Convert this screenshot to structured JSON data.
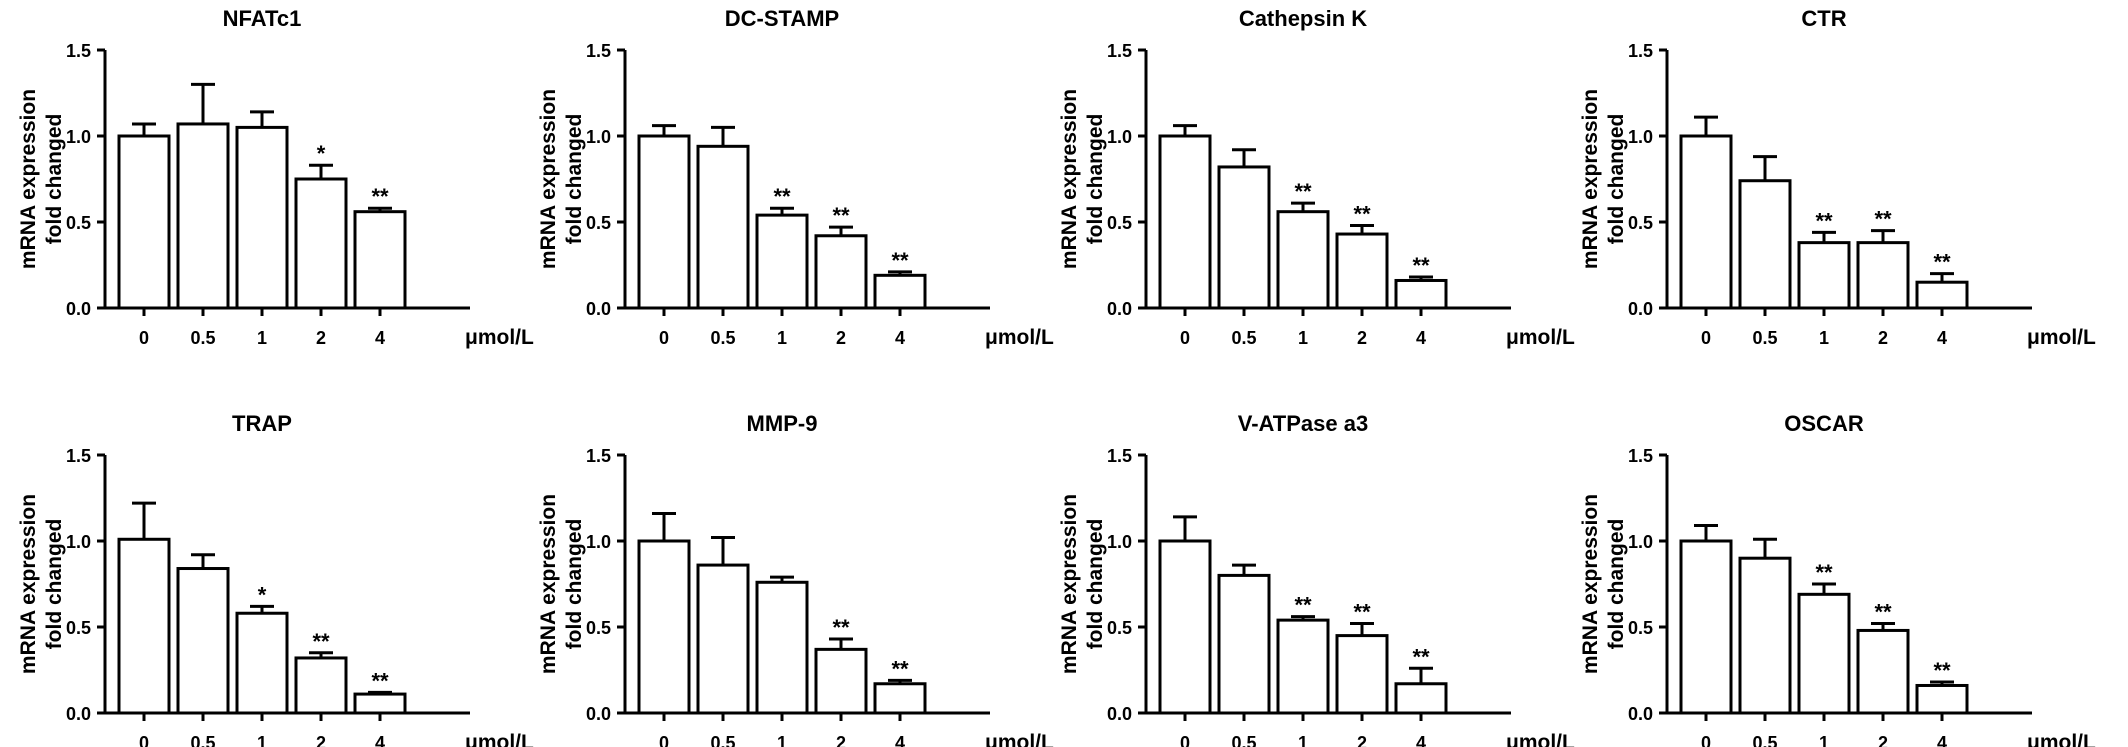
{
  "chart_data": [
    {
      "type": "bar",
      "title": "NFATc1",
      "ylabel": [
        "mRNA expression",
        "fold changed"
      ],
      "xunit": "μmol/L",
      "categories": [
        "0",
        "0.5",
        "1",
        "2",
        "4"
      ],
      "values": [
        1.0,
        1.07,
        1.05,
        0.75,
        0.56
      ],
      "errors": [
        0.07,
        0.23,
        0.09,
        0.08,
        0.02
      ],
      "significance": [
        "",
        "",
        "",
        "*",
        "**"
      ],
      "ylim": [
        0,
        1.5
      ],
      "yticks": [
        "0.0",
        "0.5",
        "1.0",
        "1.5"
      ]
    },
    {
      "type": "bar",
      "title": "DC-STAMP",
      "ylabel": [
        "mRNA expression",
        "fold changed"
      ],
      "xunit": "μmol/L",
      "categories": [
        "0",
        "0.5",
        "1",
        "2",
        "4"
      ],
      "values": [
        1.0,
        0.94,
        0.54,
        0.42,
        0.19
      ],
      "errors": [
        0.06,
        0.11,
        0.04,
        0.05,
        0.02
      ],
      "significance": [
        "",
        "",
        "**",
        "**",
        "**"
      ],
      "ylim": [
        0,
        1.5
      ],
      "yticks": [
        "0.0",
        "0.5",
        "1.0",
        "1.5"
      ]
    },
    {
      "type": "bar",
      "title": "Cathepsin K",
      "ylabel": [
        "mRNA expression",
        "fold changed"
      ],
      "xunit": "μmol/L",
      "categories": [
        "0",
        "0.5",
        "1",
        "2",
        "4"
      ],
      "values": [
        1.0,
        0.82,
        0.56,
        0.43,
        0.16
      ],
      "errors": [
        0.06,
        0.1,
        0.05,
        0.05,
        0.02
      ],
      "significance": [
        "",
        "",
        "**",
        "**",
        "**"
      ],
      "ylim": [
        0,
        1.5
      ],
      "yticks": [
        "0.0",
        "0.5",
        "1.0",
        "1.5"
      ]
    },
    {
      "type": "bar",
      "title": "CTR",
      "ylabel": [
        "mRNA expression",
        "fold changed"
      ],
      "xunit": "μmol/L",
      "categories": [
        "0",
        "0.5",
        "1",
        "2",
        "4"
      ],
      "values": [
        1.0,
        0.74,
        0.38,
        0.38,
        0.15
      ],
      "errors": [
        0.11,
        0.14,
        0.06,
        0.07,
        0.05
      ],
      "significance": [
        "",
        "",
        "**",
        "**",
        "**"
      ],
      "ylim": [
        0,
        1.5
      ],
      "yticks": [
        "0.0",
        "0.5",
        "1.0",
        "1.5"
      ]
    },
    {
      "type": "bar",
      "title": "TRAP",
      "ylabel": [
        "mRNA expression",
        "fold changed"
      ],
      "xunit": "μmol/L",
      "categories": [
        "0",
        "0.5",
        "1",
        "2",
        "4"
      ],
      "values": [
        1.01,
        0.84,
        0.58,
        0.32,
        0.11
      ],
      "errors": [
        0.21,
        0.08,
        0.04,
        0.03,
        0.01
      ],
      "significance": [
        "",
        "",
        "*",
        "**",
        "**"
      ],
      "ylim": [
        0,
        1.5
      ],
      "yticks": [
        "0.0",
        "0.5",
        "1.0",
        "1.5"
      ]
    },
    {
      "type": "bar",
      "title": "MMP-9",
      "ylabel": [
        "mRNA expression",
        "fold changed"
      ],
      "xunit": "μmol/L",
      "categories": [
        "0",
        "0.5",
        "1",
        "2",
        "4"
      ],
      "values": [
        1.0,
        0.86,
        0.76,
        0.37,
        0.17
      ],
      "errors": [
        0.16,
        0.16,
        0.03,
        0.06,
        0.02
      ],
      "significance": [
        "",
        "",
        "",
        "**",
        "**"
      ],
      "ylim": [
        0,
        1.5
      ],
      "yticks": [
        "0.0",
        "0.5",
        "1.0",
        "1.5"
      ]
    },
    {
      "type": "bar",
      "title": "V-ATPase a3",
      "ylabel": [
        "mRNA expression",
        "fold changed"
      ],
      "xunit": "μmol/L",
      "categories": [
        "0",
        "0.5",
        "1",
        "2",
        "4"
      ],
      "values": [
        1.0,
        0.8,
        0.54,
        0.45,
        0.17
      ],
      "errors": [
        0.14,
        0.06,
        0.02,
        0.07,
        0.09
      ],
      "significance": [
        "",
        "",
        "**",
        "**",
        "**"
      ],
      "ylim": [
        0,
        1.5
      ],
      "yticks": [
        "0.0",
        "0.5",
        "1.0",
        "1.5"
      ]
    },
    {
      "type": "bar",
      "title": "OSCAR",
      "ylabel": [
        "mRNA expression",
        "fold changed"
      ],
      "xunit": "μmol/L",
      "categories": [
        "0",
        "0.5",
        "1",
        "2",
        "4"
      ],
      "values": [
        1.0,
        0.9,
        0.69,
        0.48,
        0.16
      ],
      "errors": [
        0.09,
        0.11,
        0.06,
        0.04,
        0.02
      ],
      "significance": [
        "",
        "",
        "**",
        "**",
        "**"
      ],
      "ylim": [
        0,
        1.5
      ],
      "yticks": [
        "0.0",
        "0.5",
        "1.0",
        "1.5"
      ]
    }
  ]
}
